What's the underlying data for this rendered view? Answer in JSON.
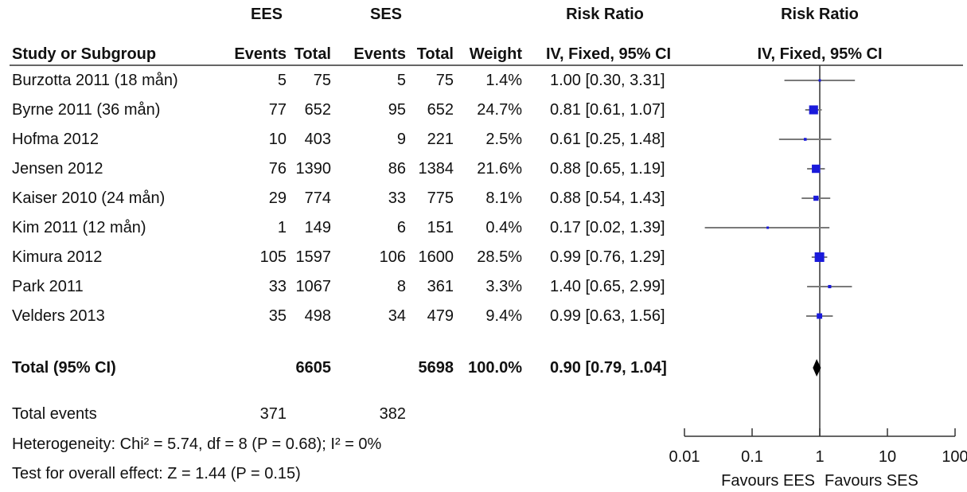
{
  "header": {
    "group1_label": "EES",
    "group2_label": "SES",
    "rr_label_top": "Risk Ratio",
    "rr_plot_label_top": "Risk Ratio",
    "study_col": "Study or Subgroup",
    "events1": "Events",
    "total1": "Total",
    "events2": "Events",
    "total2": "Total",
    "weight": "Weight",
    "rr_method": "IV, Fixed, 95% CI",
    "rr_plot_method": "IV, Fixed, 95% CI"
  },
  "rows": [
    {
      "study": "Burzotta 2011 (18 mån)",
      "e1": "5",
      "t1": "75",
      "e2": "5",
      "t2": "75",
      "weight": "1.4%",
      "ci": "1.00 [0.30, 3.31]"
    },
    {
      "study": "Byrne 2011 (36 mån)",
      "e1": "77",
      "t1": "652",
      "e2": "95",
      "t2": "652",
      "weight": "24.7%",
      "ci": "0.81 [0.61, 1.07]"
    },
    {
      "study": "Hofma 2012",
      "e1": "10",
      "t1": "403",
      "e2": "9",
      "t2": "221",
      "weight": "2.5%",
      "ci": "0.61 [0.25, 1.48]"
    },
    {
      "study": "Jensen 2012",
      "e1": "76",
      "t1": "1390",
      "e2": "86",
      "t2": "1384",
      "weight": "21.6%",
      "ci": "0.88 [0.65, 1.19]"
    },
    {
      "study": "Kaiser 2010 (24 mån)",
      "e1": "29",
      "t1": "774",
      "e2": "33",
      "t2": "775",
      "weight": "8.1%",
      "ci": "0.88 [0.54, 1.43]"
    },
    {
      "study": "Kim 2011 (12 mån)",
      "e1": "1",
      "t1": "149",
      "e2": "6",
      "t2": "151",
      "weight": "0.4%",
      "ci": "0.17 [0.02, 1.39]"
    },
    {
      "study": "Kimura 2012",
      "e1": "105",
      "t1": "1597",
      "e2": "106",
      "t2": "1600",
      "weight": "28.5%",
      "ci": "0.99 [0.76, 1.29]"
    },
    {
      "study": "Park 2011",
      "e1": "33",
      "t1": "1067",
      "e2": "8",
      "t2": "361",
      "weight": "3.3%",
      "ci": "1.40 [0.65, 2.99]"
    },
    {
      "study": "Velders 2013",
      "e1": "35",
      "t1": "498",
      "e2": "34",
      "t2": "479",
      "weight": "9.4%",
      "ci": "0.99 [0.63, 1.56]"
    }
  ],
  "total": {
    "label": "Total (95% CI)",
    "t1": "6605",
    "t2": "5698",
    "weight": "100.0%",
    "ci": "0.90 [0.79, 1.04]"
  },
  "total_events": {
    "label": "Total events",
    "e1": "371",
    "e2": "382"
  },
  "heterogeneity": "Heterogeneity: Chi² = 5.74, df = 8 (P = 0.68); I² = 0%",
  "overall_effect": "Test for overall effect: Z = 1.44 (P = 0.15)",
  "chart_data": {
    "type": "forest",
    "scale": "log",
    "xlim": [
      0.01,
      100
    ],
    "ticks": [
      0.01,
      0.1,
      1,
      10,
      100
    ],
    "tick_labels": [
      "0.01",
      "0.1",
      "1",
      "10",
      "100"
    ],
    "favours_left": "Favours EES",
    "favours_right": "Favours SES",
    "studies": [
      {
        "rr": 1.0,
        "lo": 0.3,
        "hi": 3.31,
        "weight": 1.4
      },
      {
        "rr": 0.81,
        "lo": 0.61,
        "hi": 1.07,
        "weight": 24.7
      },
      {
        "rr": 0.61,
        "lo": 0.25,
        "hi": 1.48,
        "weight": 2.5
      },
      {
        "rr": 0.88,
        "lo": 0.65,
        "hi": 1.19,
        "weight": 21.6
      },
      {
        "rr": 0.88,
        "lo": 0.54,
        "hi": 1.43,
        "weight": 8.1
      },
      {
        "rr": 0.17,
        "lo": 0.02,
        "hi": 1.39,
        "weight": 0.4
      },
      {
        "rr": 0.99,
        "lo": 0.76,
        "hi": 1.29,
        "weight": 28.5
      },
      {
        "rr": 1.4,
        "lo": 0.65,
        "hi": 2.99,
        "weight": 3.3
      },
      {
        "rr": 0.99,
        "lo": 0.63,
        "hi": 1.56,
        "weight": 9.4
      }
    ],
    "pooled": {
      "rr": 0.9,
      "lo": 0.79,
      "hi": 1.04
    },
    "colors": {
      "square": "#1a1adb",
      "ci_line": "#7a7a7a",
      "axis": "#333333",
      "diamond": "#000000"
    }
  }
}
